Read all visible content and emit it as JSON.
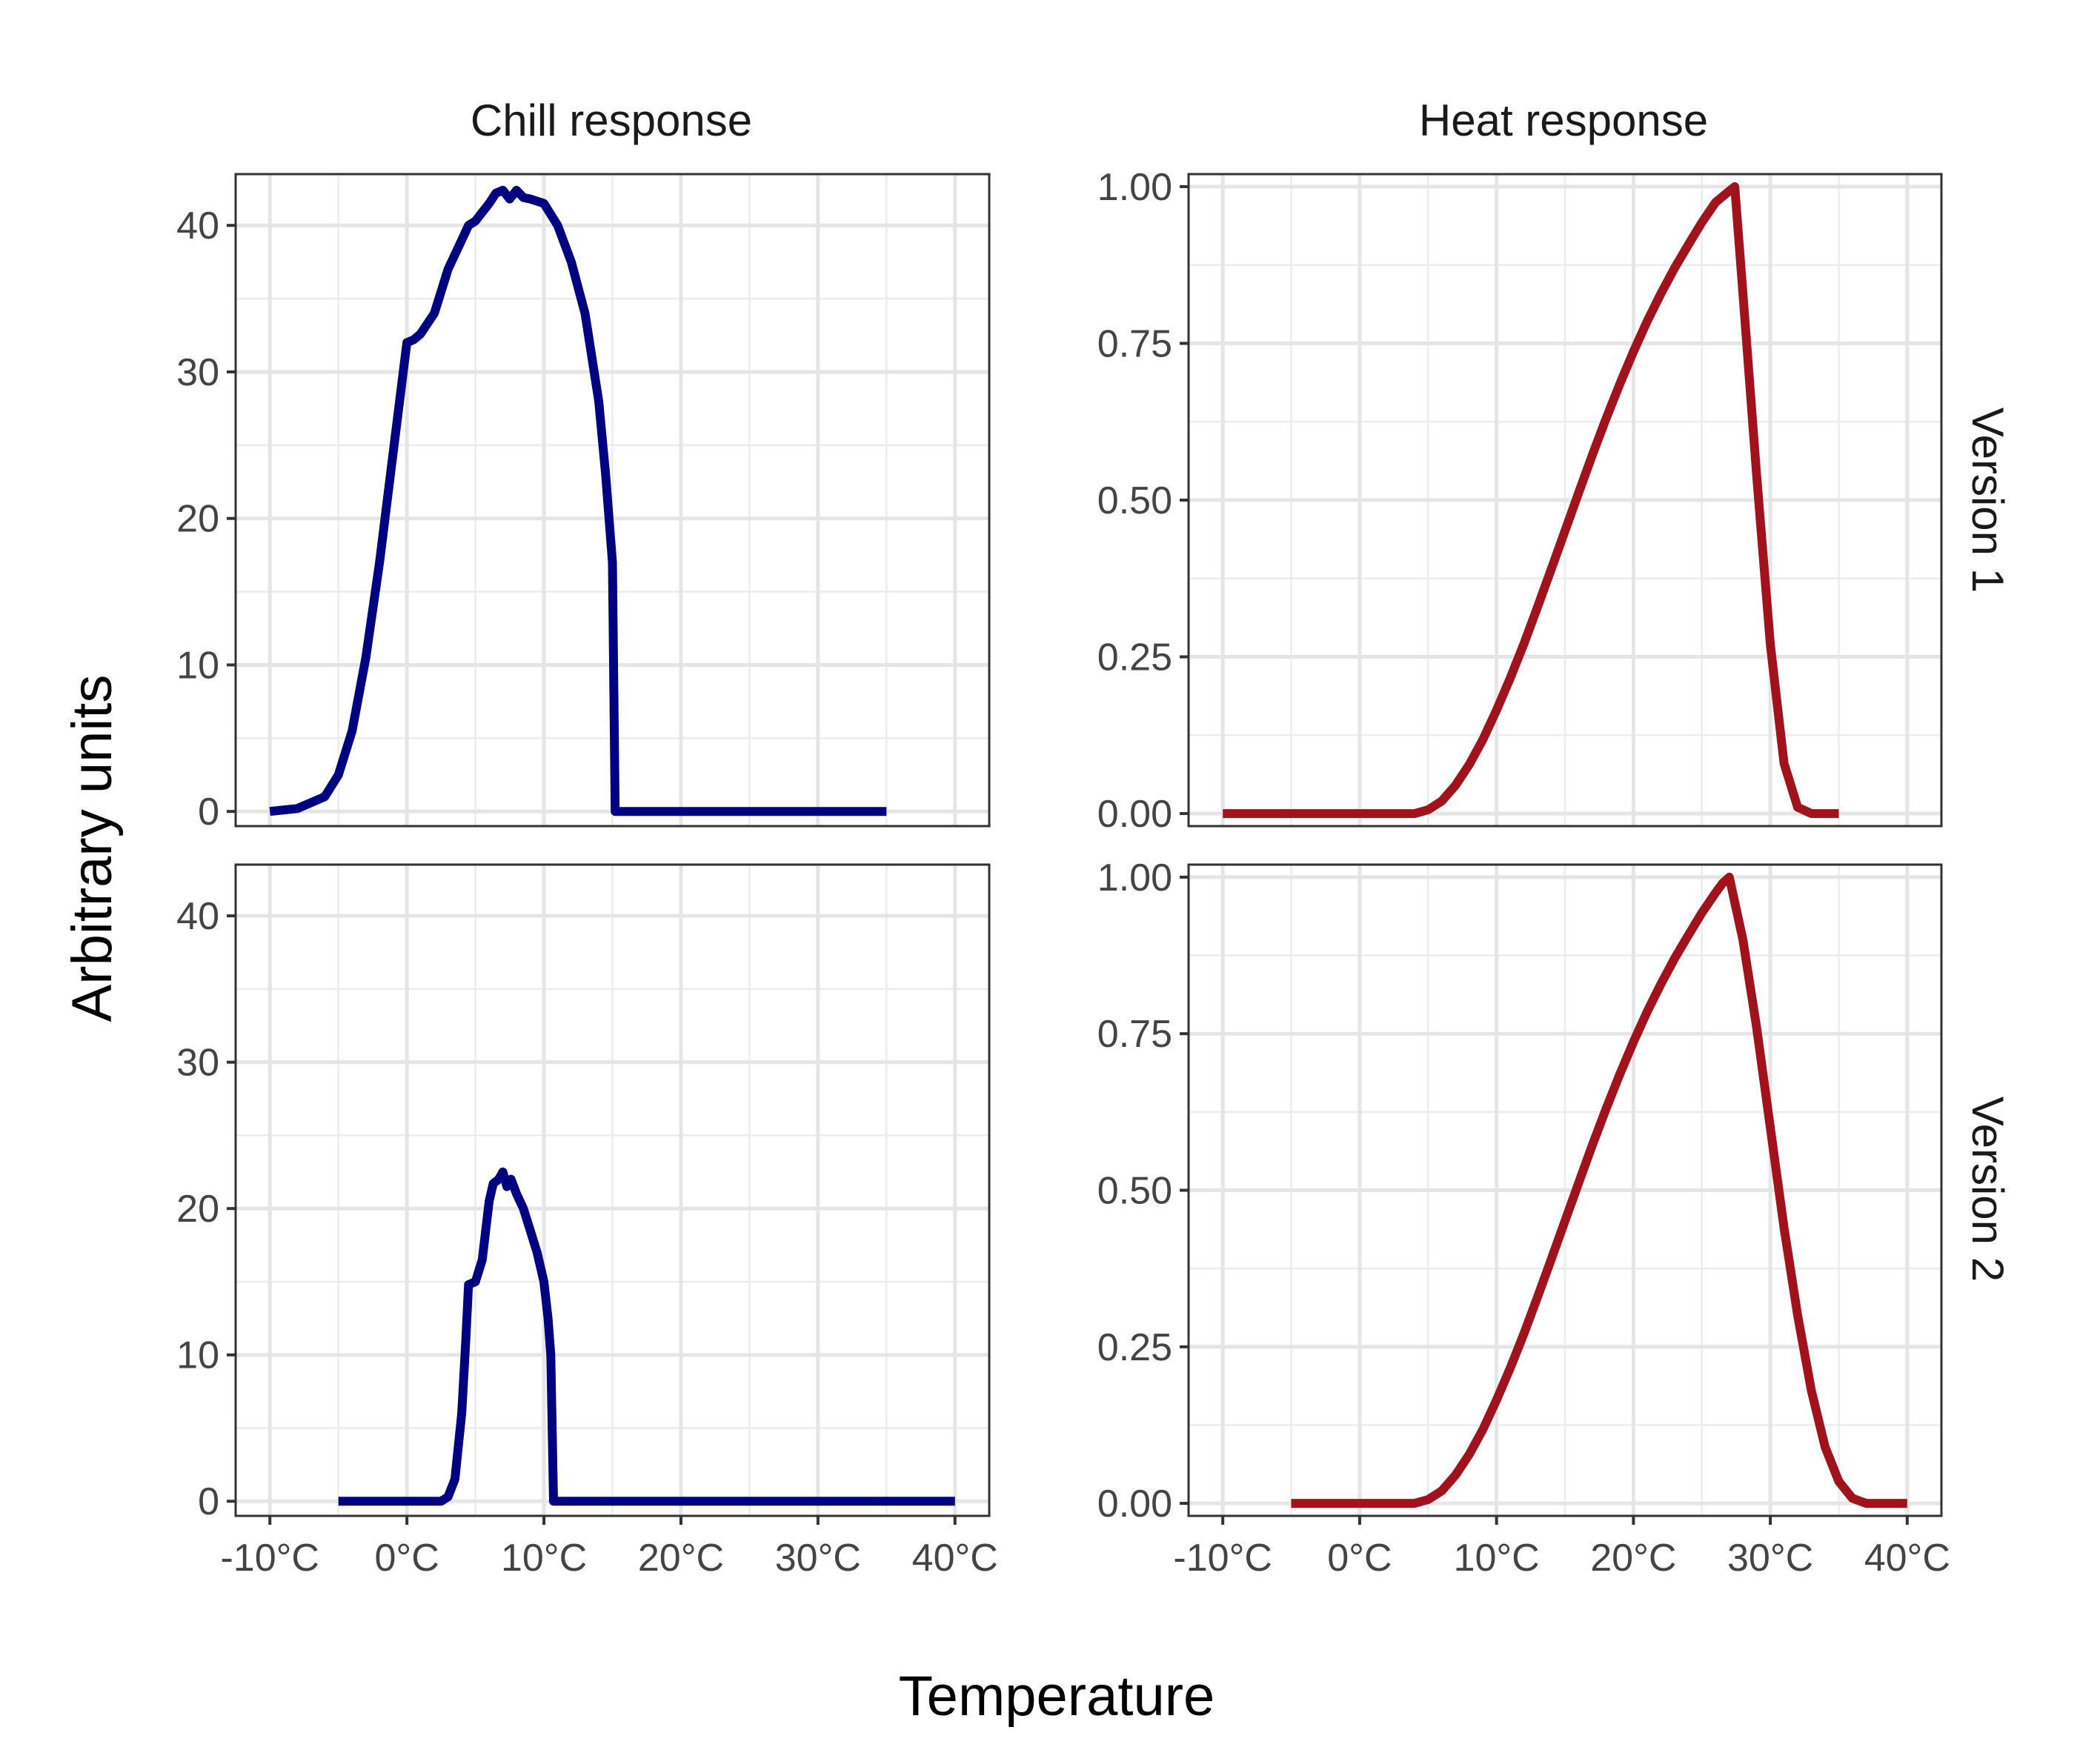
{
  "chart_data": {
    "type": "line",
    "layout": "facet_grid",
    "xlabel": "Temperature",
    "ylabel": "Arbitrary units",
    "columns": [
      "Chill response",
      "Heat response"
    ],
    "rows": [
      "Version 1",
      "Version 2"
    ],
    "x_tick_values": [
      -10,
      0,
      10,
      20,
      30,
      40
    ],
    "x_tick_labels": [
      "-10°C",
      "0°C",
      "10°C",
      "20°C",
      "30°C",
      "40°C"
    ],
    "xlim": [
      -12.5,
      42.5
    ],
    "grid": true,
    "colors": {
      "chill": "#000080",
      "heat": "#A0131D"
    },
    "panels": [
      {
        "row": "Version 1",
        "column": "Chill response",
        "color": "#000080",
        "ylim": [
          -1,
          43.5
        ],
        "y_tick_values": [
          0,
          10,
          20,
          30,
          40
        ],
        "y_tick_labels": [
          "0",
          "10",
          "20",
          "30",
          "40"
        ],
        "x": [
          -10,
          -8,
          -6,
          -5,
          -4,
          -3,
          -2,
          -1,
          0,
          0.5,
          1,
          2,
          2.5,
          3,
          4,
          4.5,
          5,
          6,
          6.5,
          7,
          7.5,
          8,
          8.5,
          9,
          10,
          11,
          12,
          13,
          14,
          14.5,
          15,
          15.2,
          15.3,
          20,
          25,
          30,
          35
        ],
        "y": [
          0,
          0.2,
          1,
          2.5,
          5.5,
          10.5,
          17,
          24.5,
          32,
          32.2,
          32.6,
          34,
          35.5,
          37,
          39,
          40,
          40.3,
          41.5,
          42.2,
          42.4,
          41.8,
          42.4,
          41.9,
          41.8,
          41.5,
          40,
          37.5,
          34,
          28,
          23,
          17,
          0,
          0,
          0,
          0,
          0,
          0
        ]
      },
      {
        "row": "Version 1",
        "column": "Heat response",
        "color": "#A0131D",
        "ylim": [
          -0.02,
          1.02
        ],
        "y_tick_values": [
          0,
          0.25,
          0.5,
          0.75,
          1
        ],
        "y_tick_labels": [
          "0.00",
          "0.25",
          "0.50",
          "0.75",
          "1.00"
        ],
        "x": [
          -10,
          -5,
          0,
          4,
          5,
          6,
          7,
          8,
          9,
          10,
          11,
          12,
          13,
          14,
          15,
          16,
          17,
          18,
          19,
          20,
          21,
          22,
          23,
          24,
          25,
          26,
          27,
          27.4,
          28,
          29,
          30,
          31,
          32,
          33,
          35
        ],
        "y": [
          0,
          0,
          0,
          0,
          0.006,
          0.02,
          0.045,
          0.078,
          0.118,
          0.165,
          0.216,
          0.271,
          0.33,
          0.39,
          0.451,
          0.512,
          0.572,
          0.63,
          0.685,
          0.737,
          0.785,
          0.829,
          0.87,
          0.907,
          0.943,
          0.975,
          0.993,
          1.0,
          0.83,
          0.54,
          0.27,
          0.08,
          0.01,
          0,
          0
        ]
      },
      {
        "row": "Version 2",
        "column": "Chill response",
        "color": "#000080",
        "ylim": [
          -1,
          43.5
        ],
        "y_tick_values": [
          0,
          10,
          20,
          30,
          40
        ],
        "y_tick_labels": [
          "0",
          "10",
          "20",
          "30",
          "40"
        ],
        "x": [
          -5,
          0,
          2.5,
          3,
          3.5,
          4,
          4.3,
          4.5,
          5,
          5.5,
          6,
          6.3,
          6.7,
          7,
          7.3,
          7.6,
          8,
          8.5,
          9,
          9.5,
          10,
          10.3,
          10.5,
          10.7,
          11,
          15,
          20,
          30,
          40
        ],
        "y": [
          0,
          0,
          0,
          0.3,
          1.5,
          6,
          11,
          14.8,
          15,
          16.5,
          20.5,
          21.7,
          22,
          22.5,
          21.5,
          22,
          21,
          20,
          18.5,
          17,
          15,
          12.5,
          10,
          0,
          0,
          0,
          0,
          0,
          0
        ]
      },
      {
        "row": "Version 2",
        "column": "Heat response",
        "color": "#A0131D",
        "ylim": [
          -0.02,
          1.02
        ],
        "y_tick_values": [
          0,
          0.25,
          0.5,
          0.75,
          1
        ],
        "y_tick_labels": [
          "0.00",
          "0.25",
          "0.50",
          "0.75",
          "1.00"
        ],
        "x": [
          -5,
          0,
          4,
          5,
          6,
          7,
          8,
          9,
          10,
          11,
          12,
          13,
          14,
          15,
          16,
          17,
          18,
          19,
          20,
          21,
          22,
          23,
          24,
          25,
          26,
          26.5,
          27,
          28,
          29,
          30,
          31,
          32,
          33,
          34,
          35,
          36,
          37,
          38,
          40
        ],
        "y": [
          0,
          0,
          0,
          0.006,
          0.02,
          0.045,
          0.078,
          0.118,
          0.165,
          0.216,
          0.271,
          0.33,
          0.39,
          0.451,
          0.512,
          0.572,
          0.63,
          0.685,
          0.737,
          0.785,
          0.829,
          0.87,
          0.907,
          0.943,
          0.975,
          0.99,
          1.0,
          0.9,
          0.76,
          0.6,
          0.44,
          0.3,
          0.18,
          0.09,
          0.035,
          0.008,
          0,
          0,
          0
        ]
      }
    ]
  }
}
